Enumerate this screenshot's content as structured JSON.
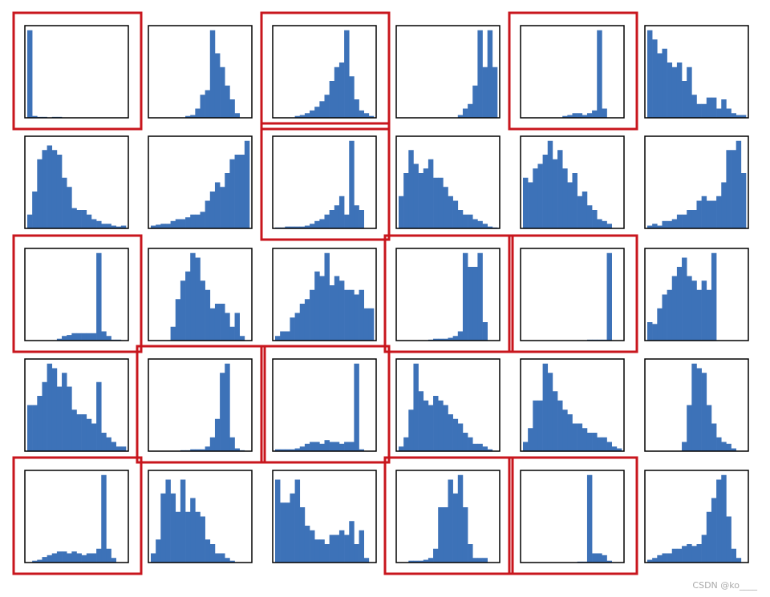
{
  "chart_data": [
    {
      "type": "bar",
      "values": [
        95,
        2,
        1,
        1,
        0,
        1,
        1,
        0,
        0,
        0,
        0,
        0,
        0,
        0,
        0,
        0,
        0,
        0,
        0,
        0
      ],
      "ylim": [
        0,
        100
      ],
      "color": "#3d72b8",
      "highlight": true
    },
    {
      "type": "bar",
      "values": [
        0,
        0,
        0,
        0,
        0,
        0,
        0,
        2,
        3,
        10,
        25,
        30,
        95,
        70,
        55,
        35,
        20,
        5,
        0,
        0
      ],
      "ylim": [
        0,
        100
      ],
      "color": "#3d72b8",
      "highlight": false
    },
    {
      "type": "bar",
      "values": [
        0,
        0,
        0,
        0,
        2,
        3,
        5,
        8,
        12,
        18,
        25,
        40,
        55,
        60,
        95,
        45,
        20,
        8,
        5,
        2
      ],
      "ylim": [
        0,
        100
      ],
      "color": "#3d72b8",
      "highlight": true
    },
    {
      "type": "bar",
      "values": [
        0,
        0,
        0,
        0,
        0,
        0,
        0,
        0,
        0,
        0,
        0,
        0,
        3,
        10,
        15,
        35,
        95,
        55,
        95,
        55
      ],
      "ylim": [
        0,
        100
      ],
      "color": "#3d72b8",
      "highlight": false
    },
    {
      "type": "bar",
      "values": [
        0,
        0,
        0,
        0,
        0,
        0,
        0,
        0,
        2,
        3,
        5,
        5,
        3,
        5,
        8,
        95,
        10,
        0,
        0,
        0
      ],
      "ylim": [
        0,
        100
      ],
      "color": "#3d72b8",
      "highlight": true
    },
    {
      "type": "bar",
      "values": [
        95,
        85,
        70,
        75,
        60,
        55,
        60,
        40,
        55,
        25,
        15,
        15,
        22,
        22,
        10,
        20,
        10,
        5,
        3,
        3
      ],
      "ylim": [
        0,
        100
      ],
      "color": "#3d72b8",
      "highlight": false
    },
    {
      "type": "bar",
      "values": [
        15,
        40,
        75,
        85,
        90,
        85,
        80,
        55,
        45,
        22,
        20,
        20,
        15,
        10,
        8,
        5,
        5,
        3,
        2,
        3
      ],
      "ylim": [
        0,
        100
      ],
      "color": "#3d72b8",
      "highlight": false
    },
    {
      "type": "bar",
      "values": [
        3,
        4,
        5,
        5,
        8,
        10,
        10,
        12,
        15,
        15,
        18,
        30,
        40,
        50,
        45,
        60,
        75,
        80,
        80,
        95
      ],
      "ylim": [
        0,
        100
      ],
      "color": "#3d72b8",
      "highlight": false
    },
    {
      "type": "bar",
      "values": [
        1,
        1,
        2,
        2,
        2,
        2,
        3,
        5,
        8,
        10,
        15,
        20,
        25,
        35,
        15,
        95,
        25,
        20,
        0,
        0
      ],
      "ylim": [
        0,
        100
      ],
      "color": "#3d72b8",
      "highlight": true
    },
    {
      "type": "bar",
      "values": [
        35,
        60,
        85,
        70,
        60,
        65,
        75,
        55,
        55,
        45,
        35,
        30,
        20,
        15,
        15,
        10,
        8,
        5,
        2,
        1
      ],
      "ylim": [
        0,
        100
      ],
      "color": "#3d72b8",
      "highlight": false
    },
    {
      "type": "bar",
      "values": [
        55,
        50,
        65,
        70,
        80,
        95,
        75,
        85,
        65,
        50,
        60,
        35,
        40,
        25,
        20,
        10,
        8,
        5,
        0,
        0
      ],
      "ylim": [
        0,
        100
      ],
      "color": "#3d72b8",
      "highlight": false
    },
    {
      "type": "bar",
      "values": [
        3,
        5,
        3,
        8,
        8,
        10,
        15,
        15,
        20,
        20,
        30,
        35,
        30,
        30,
        35,
        50,
        85,
        85,
        95,
        60
      ],
      "ylim": [
        0,
        100
      ],
      "color": "#3d72b8",
      "highlight": false
    },
    {
      "type": "bar",
      "values": [
        0,
        0,
        0,
        0,
        0,
        0,
        2,
        5,
        6,
        8,
        8,
        8,
        8,
        8,
        95,
        10,
        5,
        1,
        1,
        0
      ],
      "ylim": [
        0,
        100
      ],
      "color": "#3d72b8",
      "highlight": true
    },
    {
      "type": "bar",
      "values": [
        0,
        0,
        0,
        0,
        15,
        45,
        65,
        75,
        95,
        90,
        65,
        55,
        35,
        40,
        40,
        30,
        15,
        30,
        5,
        0
      ],
      "ylim": [
        0,
        100
      ],
      "color": "#3d72b8",
      "highlight": false
    },
    {
      "type": "bar",
      "values": [
        5,
        10,
        10,
        25,
        30,
        40,
        45,
        55,
        75,
        70,
        95,
        60,
        70,
        65,
        55,
        55,
        50,
        55,
        35,
        35
      ],
      "ylim": [
        0,
        100
      ],
      "color": "#3d72b8",
      "highlight": false
    },
    {
      "type": "bar",
      "values": [
        0,
        0,
        0,
        0,
        0,
        0,
        1,
        2,
        2,
        2,
        3,
        5,
        10,
        95,
        80,
        80,
        95,
        20,
        0,
        0
      ],
      "ylim": [
        0,
        100
      ],
      "color": "#3d72b8",
      "highlight": true
    },
    {
      "type": "bar",
      "values": [
        0,
        0,
        0,
        0,
        0,
        0,
        0,
        0,
        0,
        0,
        0,
        0,
        0,
        1,
        1,
        1,
        1,
        95,
        0,
        0
      ],
      "ylim": [
        0,
        100
      ],
      "color": "#3d72b8",
      "highlight": true
    },
    {
      "type": "bar",
      "values": [
        20,
        18,
        35,
        50,
        55,
        70,
        80,
        90,
        70,
        65,
        55,
        65,
        55,
        95,
        0,
        0,
        0,
        0,
        0,
        0
      ],
      "ylim": [
        0,
        100
      ],
      "color": "#3d72b8",
      "highlight": false
    },
    {
      "type": "bar",
      "values": [
        50,
        50,
        60,
        75,
        95,
        90,
        70,
        85,
        70,
        45,
        40,
        40,
        35,
        30,
        75,
        20,
        15,
        10,
        5,
        5
      ],
      "ylim": [
        0,
        100
      ],
      "color": "#3d72b8",
      "highlight": false
    },
    {
      "type": "bar",
      "values": [
        0,
        0,
        0,
        0,
        0,
        0,
        1,
        1,
        2,
        2,
        2,
        5,
        15,
        35,
        85,
        95,
        15,
        3,
        1,
        0
      ],
      "ylim": [
        0,
        100
      ],
      "color": "#3d72b8",
      "highlight": true
    },
    {
      "type": "bar",
      "values": [
        2,
        2,
        2,
        2,
        3,
        5,
        8,
        10,
        10,
        8,
        12,
        10,
        10,
        8,
        10,
        10,
        95,
        2,
        0,
        0
      ],
      "ylim": [
        0,
        100
      ],
      "color": "#3d72b8",
      "highlight": true
    },
    {
      "type": "bar",
      "values": [
        5,
        15,
        45,
        95,
        65,
        55,
        50,
        60,
        55,
        50,
        40,
        35,
        30,
        20,
        15,
        8,
        8,
        5,
        2,
        0
      ],
      "ylim": [
        0,
        100
      ],
      "color": "#3d72b8",
      "highlight": false
    },
    {
      "type": "bar",
      "values": [
        10,
        25,
        55,
        55,
        95,
        85,
        65,
        55,
        45,
        40,
        30,
        30,
        25,
        20,
        20,
        15,
        15,
        10,
        5,
        3
      ],
      "ylim": [
        0,
        100
      ],
      "color": "#3d72b8",
      "highlight": false
    },
    {
      "type": "bar",
      "values": [
        0,
        0,
        0,
        0,
        0,
        0,
        0,
        10,
        50,
        95,
        90,
        85,
        50,
        30,
        15,
        10,
        8,
        3,
        0,
        0
      ],
      "ylim": [
        0,
        100
      ],
      "color": "#3d72b8",
      "highlight": false
    },
    {
      "type": "bar",
      "values": [
        0,
        2,
        3,
        6,
        8,
        10,
        12,
        12,
        10,
        12,
        10,
        8,
        10,
        10,
        15,
        95,
        15,
        5,
        0,
        0
      ],
      "ylim": [
        0,
        100
      ],
      "color": "#3d72b8",
      "highlight": true
    },
    {
      "type": "bar",
      "values": [
        10,
        25,
        75,
        90,
        75,
        55,
        90,
        55,
        70,
        55,
        50,
        25,
        20,
        10,
        10,
        5,
        2,
        0,
        0,
        0
      ],
      "ylim": [
        0,
        100
      ],
      "color": "#3d72b8",
      "highlight": false
    },
    {
      "type": "bar",
      "values": [
        90,
        65,
        65,
        75,
        90,
        60,
        40,
        35,
        25,
        25,
        20,
        30,
        30,
        35,
        30,
        45,
        20,
        35,
        5,
        0
      ],
      "ylim": [
        0,
        100
      ],
      "color": "#3d72b8",
      "highlight": false
    },
    {
      "type": "bar",
      "values": [
        0,
        0,
        2,
        2,
        2,
        3,
        5,
        15,
        60,
        60,
        90,
        75,
        95,
        60,
        20,
        5,
        5,
        5,
        0,
        0
      ],
      "ylim": [
        0,
        100
      ],
      "color": "#3d72b8",
      "highlight": true
    },
    {
      "type": "bar",
      "values": [
        0,
        0,
        0,
        0,
        0,
        0,
        0,
        0,
        0,
        0,
        0,
        1,
        1,
        95,
        10,
        10,
        8,
        2,
        0,
        0
      ],
      "ylim": [
        0,
        100
      ],
      "color": "#3d72b8",
      "highlight": true
    },
    {
      "type": "bar",
      "values": [
        3,
        5,
        8,
        10,
        10,
        15,
        15,
        18,
        20,
        18,
        20,
        30,
        55,
        70,
        90,
        95,
        50,
        15,
        5,
        0
      ],
      "ylim": [
        0,
        100
      ],
      "color": "#3d72b8",
      "highlight": false
    }
  ],
  "watermark": "CSDN @ko____"
}
